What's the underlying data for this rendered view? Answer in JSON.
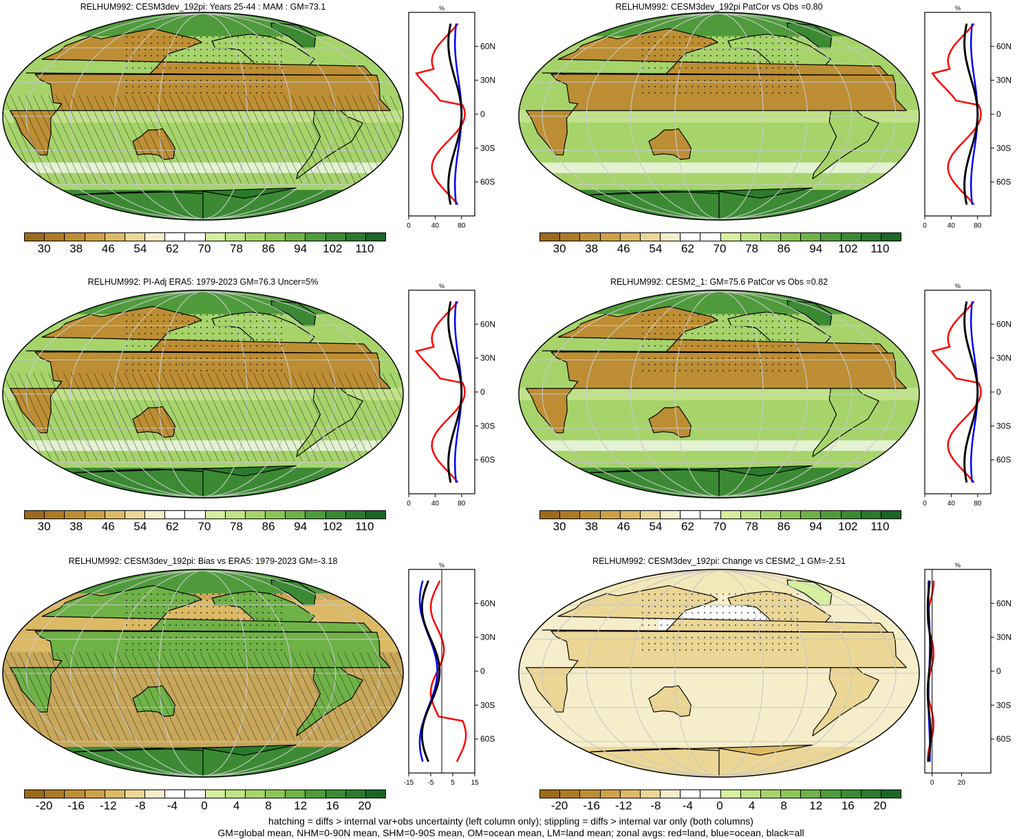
{
  "chart_data": [
    {
      "type": "heatmap",
      "title": "RELHUM992: CESM3dev_192pi: Years 25-44 : MAM : GM=73.1",
      "colorbar_ticks": [
        "30",
        "38",
        "46",
        "54",
        "62",
        "70",
        "78",
        "86",
        "94",
        "102",
        "110"
      ],
      "colorbar_kind": "abs",
      "overlays": "hatching and stippling",
      "zonal": {
        "xticks": [
          "0",
          "40",
          "80"
        ],
        "xlim": [
          0,
          100
        ],
        "unit": "%",
        "lat_ticks": [
          "60N",
          "30N",
          "0",
          "30S",
          "60S"
        ]
      }
    },
    {
      "type": "heatmap",
      "title": "RELHUM992: CESM3dev_192pi PatCor vs Obs =0.80",
      "colorbar_ticks": [
        "30",
        "38",
        "46",
        "54",
        "62",
        "70",
        "78",
        "86",
        "94",
        "102",
        "110"
      ],
      "colorbar_kind": "abs",
      "overlays": "stippling",
      "zonal": {
        "xticks": [
          "0",
          "40",
          "80"
        ],
        "xlim": [
          0,
          100
        ],
        "unit": "%",
        "lat_ticks": [
          "60N",
          "30N",
          "0",
          "30S",
          "60S"
        ]
      }
    },
    {
      "type": "heatmap",
      "title": "RELHUM992: PI-Adj ERA5: 1979-2023 GM=76.3 Uncer=5%",
      "colorbar_ticks": [
        "30",
        "38",
        "46",
        "54",
        "62",
        "70",
        "78",
        "86",
        "94",
        "102",
        "110"
      ],
      "colorbar_kind": "abs",
      "overlays": "hatching and stippling",
      "zonal": {
        "xticks": [
          "0",
          "40",
          "80"
        ],
        "xlim": [
          0,
          100
        ],
        "unit": "%",
        "lat_ticks": [
          "60N",
          "30N",
          "0",
          "30S",
          "60S"
        ]
      }
    },
    {
      "type": "heatmap",
      "title": "RELHUM992: CESM2_1: GM=75.6 PatCor vs Obs =0.82",
      "colorbar_ticks": [
        "30",
        "38",
        "46",
        "54",
        "62",
        "70",
        "78",
        "86",
        "94",
        "102",
        "110"
      ],
      "colorbar_kind": "abs",
      "overlays": "stippling",
      "zonal": {
        "xticks": [
          "0",
          "40",
          "80"
        ],
        "xlim": [
          0,
          100
        ],
        "unit": "%",
        "lat_ticks": [
          "60N",
          "30N",
          "0",
          "30S",
          "60S"
        ]
      }
    },
    {
      "type": "heatmap",
      "title": "RELHUM992: CESM3dev_192pi: Bias vs ERA5: 1979-2023 GM=-3.18",
      "colorbar_ticks": [
        "-20",
        "-16",
        "-12",
        "-8",
        "-4",
        "0",
        "4",
        "8",
        "12",
        "16",
        "20"
      ],
      "colorbar_kind": "diff",
      "overlays": "hatching and stippling",
      "zonal": {
        "xticks": [
          "-15",
          "-5",
          "5",
          "15"
        ],
        "xlim": [
          -15,
          15
        ],
        "unit": "%",
        "lat_ticks": [
          "60N",
          "30N",
          "0",
          "30S",
          "60S"
        ]
      }
    },
    {
      "type": "heatmap",
      "title": "RELHUM992: CESM3dev_192pi: Change vs CESM2_1 GM=-2.51",
      "colorbar_ticks": [
        "-20",
        "-16",
        "-12",
        "-8",
        "-4",
        "0",
        "4",
        "8",
        "12",
        "16",
        "20"
      ],
      "colorbar_kind": "diff",
      "overlays": "stippling",
      "zonal": {
        "xticks": [
          "0",
          "20"
        ],
        "xlim": [
          -5,
          40
        ],
        "unit": "%",
        "lat_ticks": [
          "60N",
          "30N",
          "0",
          "30S",
          "60S"
        ]
      }
    }
  ],
  "palette": {
    "abs": [
      "#9c6a1c",
      "#ad7a25",
      "#bd8e33",
      "#cda048",
      "#dcb964",
      "#ebd695",
      "#f6eeca",
      "#ffffff",
      "#ffffff",
      "#d5ef9f",
      "#bfe385",
      "#a6d46b",
      "#8cc556",
      "#6fb247",
      "#4f9b3c",
      "#3b8a33",
      "#2b7a2c",
      "#1a6626"
    ],
    "diff": [
      "#9c6a1c",
      "#ad7a25",
      "#bd8e33",
      "#cda048",
      "#dcb964",
      "#ebd695",
      "#f6eeca",
      "#ffffff",
      "#ffffff",
      "#d5ef9f",
      "#bfe385",
      "#a6d46b",
      "#8cc556",
      "#6fb247",
      "#4f9b3c",
      "#3b8a33",
      "#2b7a2c",
      "#1a6626"
    ]
  },
  "zonal_legend_colors": {
    "land": "#ff0000",
    "ocean": "#0000ff",
    "all": "#000000"
  },
  "footer": {
    "line1": "hatching = diffs > internal var+obs uncertainty (left column only); stippling = diffs > internal var only (both columns)",
    "line2": "GM=global mean, NHM=0-90N mean, SHM=0-90S mean, OM=ocean mean, LM=land mean; zonal avgs: red=land, blue=ocean, black=all"
  }
}
